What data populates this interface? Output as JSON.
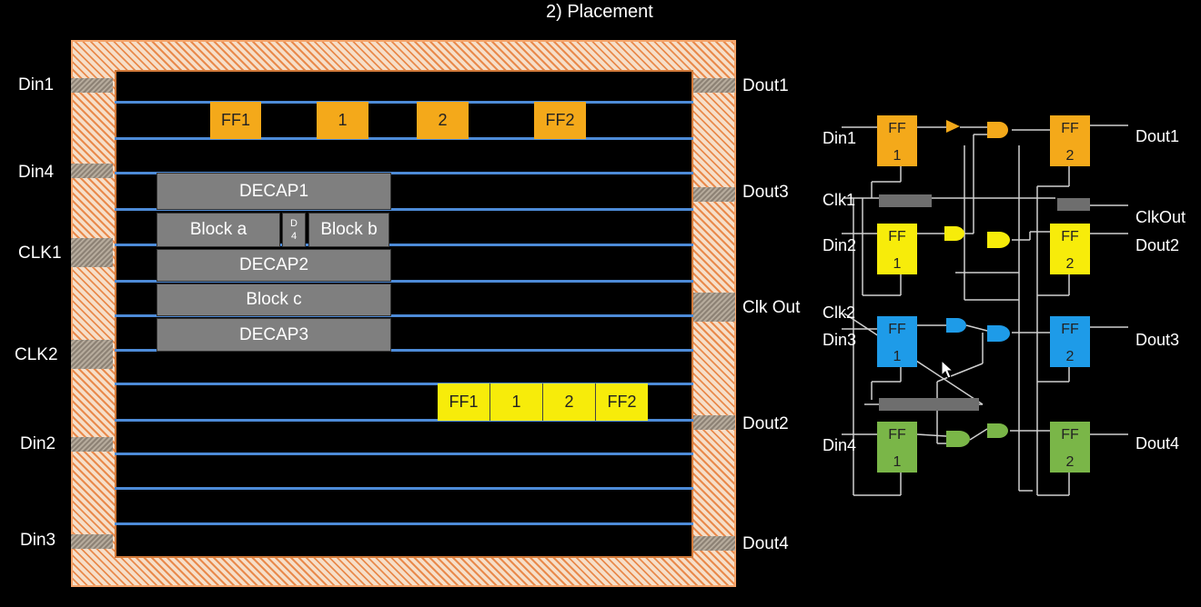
{
  "title": "2) Placement",
  "pads_left": {
    "din1": "Din1",
    "din4": "Din4",
    "clk1": "CLK1",
    "clk2": "CLK2",
    "din2": "Din2",
    "din3": "Din3"
  },
  "pads_right": {
    "dout1": "Dout1",
    "dout3": "Dout3",
    "clkout": "Clk Out",
    "dout2": "Dout2",
    "dout4": "Dout4"
  },
  "row1_cells": [
    "FF1",
    "1",
    "2",
    "FF2"
  ],
  "row2_cells": [
    "FF1",
    "1",
    "2",
    "FF2"
  ],
  "blocks": {
    "decap1": "DECAP1",
    "block_a": "Block a",
    "d4_top": "D",
    "d4_bot": "4",
    "block_b": "Block b",
    "decap2": "DECAP2",
    "block_c": "Block c",
    "decap3": "DECAP3"
  },
  "schematic": {
    "inputs": [
      "Din1",
      "Clk1",
      "Din2",
      "Clk2",
      "Din3",
      "Din4"
    ],
    "outputs": [
      "Dout1",
      "ClkOut",
      "Dout2",
      "Dout3",
      "Dout4"
    ],
    "ff_top": "FF",
    "ff_num_1": "1",
    "ff_num_2": "2",
    "colors": {
      "orange": "#f4a91a",
      "yellow": "#f7ec0a",
      "blue": "#1e9be8",
      "green": "#7ab648"
    }
  }
}
